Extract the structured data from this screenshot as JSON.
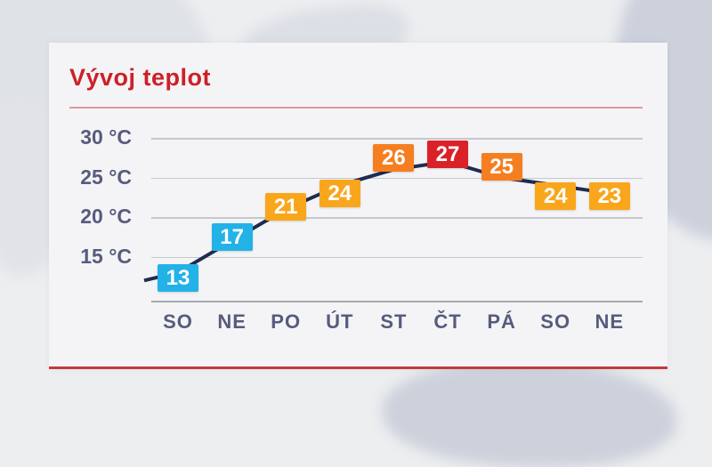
{
  "header": {
    "title": "Vývoj teplot"
  },
  "colors": {
    "title_red": "#cd2027",
    "bottom_rule_red": "#c4393e",
    "line_navy": "#1f2b50",
    "axis_text": "#575b7d",
    "badge_blue": "#22b2e8",
    "badge_amber": "#f9a61c",
    "badge_orange": "#f57f20",
    "badge_red": "#da2128"
  },
  "chart_data": {
    "type": "line",
    "title": "Vývoj teplot",
    "xlabel": "",
    "ylabel": "",
    "categories": [
      "SO",
      "NE",
      "PO",
      "ÚT",
      "ST",
      "ČT",
      "PÁ",
      "SO",
      "NE"
    ],
    "values": [
      13,
      17,
      21,
      24,
      26,
      27,
      25,
      24,
      23
    ],
    "point_colors": [
      "#22b2e8",
      "#22b2e8",
      "#f9a61c",
      "#f9a61c",
      "#f57f20",
      "#da2128",
      "#f57f20",
      "#f9a61c",
      "#f9a61c"
    ],
    "label_dy": [
      6,
      -4,
      -3,
      9,
      -13,
      -8,
      -12,
      12,
      3
    ],
    "y_ticks": [
      30,
      25,
      20,
      15
    ],
    "y_tick_labels": [
      "30 °C",
      "25 °C",
      "20 °C",
      "15 °C"
    ],
    "ylim": [
      10,
      32
    ],
    "grid": true,
    "legend": false,
    "line_color": "#1f2b50",
    "unit": "°C"
  }
}
